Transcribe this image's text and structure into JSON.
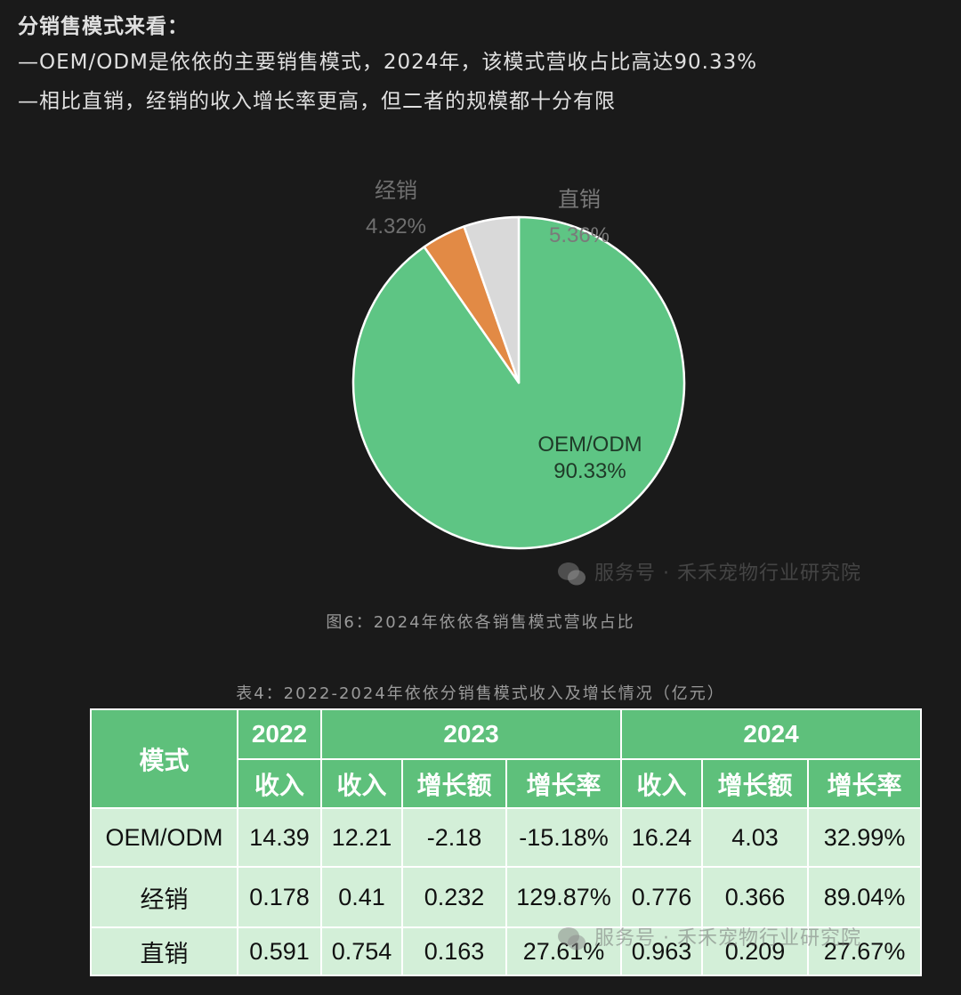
{
  "intro": {
    "heading": "分销售模式来看：",
    "line1": "—OEM/ODM是依依的主要销售模式，2024年，该模式营收占比高达90.33%",
    "line2": "—相比直销，经销的收入增长率更高，但二者的规模都十分有限"
  },
  "chart_data": {
    "type": "pie",
    "slices": [
      {
        "name": "OEM/ODM",
        "value": 90.33,
        "label": "90.33%",
        "color": "#5ec584"
      },
      {
        "name": "经销",
        "value": 4.32,
        "label": "4.32%",
        "color": "#e28a45"
      },
      {
        "name": "直销",
        "value": 5.36,
        "label": "5.36%",
        "color": "#d9d9d9"
      }
    ]
  },
  "figure_caption": "图6：2024年依依各销售模式营收占比",
  "watermark": "服务号 · 禾禾宠物行业研究院",
  "watermark2": "服务号 · 禾禾宠物行业研究院",
  "table": {
    "caption": "表4：2022-2024年依依分销售模式收入及增长情况（亿元）",
    "mode_header": "模式",
    "years": [
      "2022",
      "2023",
      "2024"
    ],
    "subheaders": [
      "收入",
      "收入",
      "增长额",
      "增长率",
      "收入",
      "增长额",
      "增长率"
    ],
    "rows": [
      {
        "mode": "OEM/ODM",
        "cells": [
          "14.39",
          "12.21",
          "-2.18",
          "-15.18%",
          "16.24",
          "4.03",
          "32.99%"
        ]
      },
      {
        "mode": "经销",
        "cells": [
          "0.178",
          "0.41",
          "0.232",
          "129.87%",
          "0.776",
          "0.366",
          "89.04%"
        ]
      },
      {
        "mode": "直销",
        "cells": [
          "0.591",
          "0.754",
          "0.163",
          "27.61%",
          "0.963",
          "0.209",
          "27.67%"
        ]
      }
    ]
  }
}
